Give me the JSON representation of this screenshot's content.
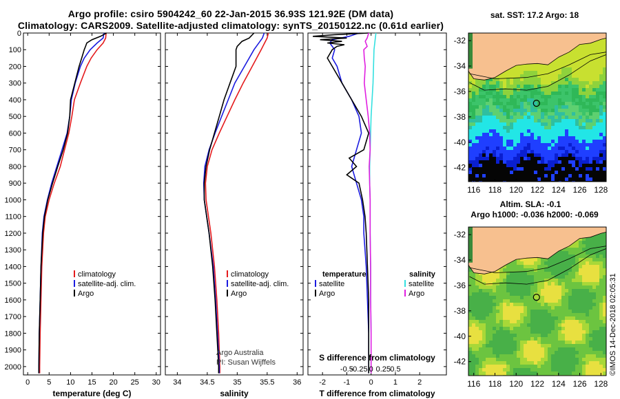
{
  "header": {
    "title_line1": "Argo profile: csiro 5904242_60 22-Jan-2015 36.93S 121.92E (DM data)",
    "title_line2": "Climatology: CARS2009. Satellite-adjusted climatology: synTS_20150122.nc (0.61d earlier)"
  },
  "colors": {
    "climatology": "#e41a1c",
    "satellite": "#1a1adf",
    "argo": "#000000",
    "s_satellite": "#33e0e0",
    "s_argo": "#e01ee0",
    "land": "#f7c08f"
  },
  "chart_data": [
    {
      "id": "temperature",
      "type": "line",
      "xlabel": "temperature (deg C)",
      "xlim": [
        -1,
        31
      ],
      "xticks": [
        0,
        5,
        10,
        15,
        20,
        25,
        30
      ],
      "ylim": [
        2050,
        0
      ],
      "yticks": [
        0,
        100,
        200,
        300,
        400,
        500,
        600,
        700,
        800,
        900,
        1000,
        1100,
        1200,
        1300,
        1400,
        1500,
        1600,
        1700,
        1800,
        1900,
        2000
      ],
      "legend": [
        "climatology",
        "satellite-adj. clim.",
        "Argo"
      ],
      "series": [
        {
          "name": "climatology",
          "color": "#e41a1c",
          "depth": [
            0,
            30,
            60,
            100,
            150,
            200,
            300,
            400,
            500,
            600,
            700,
            800,
            900,
            1000,
            1100,
            1200,
            1400,
            1600,
            1800,
            2000,
            2040
          ],
          "values": [
            18.3,
            18.2,
            17.6,
            16.2,
            14.8,
            13.8,
            12.3,
            10.9,
            10.3,
            9.6,
            8.6,
            7.6,
            6.2,
            5.0,
            4.1,
            3.7,
            3.3,
            3.1,
            2.9,
            2.8,
            2.8
          ]
        },
        {
          "name": "satellite-adj. clim.",
          "color": "#1a1adf",
          "depth": [
            0,
            30,
            60,
            100,
            150,
            200,
            300,
            400,
            500,
            600,
            700,
            800,
            900,
            1000,
            1100,
            1200,
            1400,
            1600,
            1800,
            2000,
            2040
          ],
          "values": [
            17.8,
            17.6,
            16.2,
            14.6,
            13.2,
            12.3,
            11.1,
            10.2,
            9.8,
            9.2,
            8.0,
            6.8,
            5.6,
            4.6,
            3.8,
            3.4,
            3.1,
            2.9,
            2.7,
            2.6,
            2.6
          ]
        },
        {
          "name": "Argo",
          "color": "#000000",
          "depth": [
            0,
            20,
            40,
            60,
            80,
            100,
            150,
            200,
            300,
            400,
            500,
            600,
            700,
            800,
            900,
            1000,
            1100,
            1200,
            1400,
            1600,
            1800,
            2000,
            2040
          ],
          "values": [
            18.4,
            17.0,
            15.0,
            13.8,
            13.5,
            13.2,
            12.6,
            12.0,
            11.0,
            10.0,
            9.8,
            9.3,
            8.3,
            7.0,
            5.8,
            4.7,
            3.9,
            3.5,
            3.1,
            2.9,
            2.7,
            2.6,
            2.6
          ]
        }
      ]
    },
    {
      "id": "salinity",
      "type": "line",
      "xlabel": "salinity",
      "xlim": [
        33.8,
        36.1
      ],
      "xticks": [
        34,
        34.5,
        35,
        35.5,
        36
      ],
      "xticklabels": [
        "34",
        "34.5",
        "35",
        "35.5",
        "36"
      ],
      "ylim": [
        2050,
        0
      ],
      "legend": [
        "climatology",
        "satellite-adj. clim.",
        "Argo"
      ],
      "annotations": [
        "Argo Australia",
        "PI: Susan Wijffels"
      ],
      "series": [
        {
          "name": "climatology",
          "color": "#e41a1c",
          "depth": [
            0,
            30,
            100,
            200,
            300,
            400,
            500,
            600,
            700,
            800,
            900,
            1000,
            1100,
            1200,
            1400,
            1600,
            1800,
            2000,
            2040
          ],
          "values": [
            35.52,
            35.5,
            35.4,
            35.25,
            35.1,
            34.96,
            34.83,
            34.7,
            34.58,
            34.5,
            34.47,
            34.48,
            34.52,
            34.56,
            34.62,
            34.66,
            34.69,
            34.71,
            34.71
          ]
        },
        {
          "name": "satellite-adj. clim.",
          "color": "#1a1adf",
          "depth": [
            0,
            30,
            100,
            200,
            300,
            400,
            500,
            600,
            700,
            800,
            900,
            1000,
            1100,
            1200,
            1400,
            1600,
            1800,
            2000,
            2040
          ],
          "values": [
            35.45,
            35.42,
            35.28,
            35.12,
            34.96,
            34.85,
            34.74,
            34.63,
            34.53,
            34.46,
            34.44,
            34.45,
            34.49,
            34.53,
            34.6,
            34.64,
            34.67,
            34.7,
            34.7
          ]
        },
        {
          "name": "Argo",
          "color": "#000000",
          "depth": [
            0,
            30,
            50,
            80,
            100,
            200,
            300,
            400,
            500,
            600,
            700,
            800,
            900,
            1000,
            1100,
            1200,
            1400,
            1600,
            1800,
            2000,
            2040
          ],
          "values": [
            35.28,
            35.2,
            35.08,
            35.0,
            34.98,
            34.98,
            34.88,
            34.78,
            34.7,
            34.62,
            34.54,
            34.48,
            34.45,
            34.45,
            34.49,
            34.53,
            34.59,
            34.63,
            34.66,
            34.69,
            34.69
          ]
        }
      ]
    },
    {
      "id": "differences",
      "type": "line",
      "xlabel": "T difference from climatology",
      "xlabel_top": "S difference from climatology",
      "xlim": [
        -2.6,
        3.1
      ],
      "xticks": [
        -2,
        -1,
        0,
        1,
        2
      ],
      "xticks_top": [
        -0.5,
        -0.25,
        0,
        0.25,
        0.5
      ],
      "xticks_top_labels": [
        "-0.5",
        "-0.25",
        "0",
        "0.25",
        "0.5"
      ],
      "ylim": [
        2050,
        0
      ],
      "legend_left_title": "temperature",
      "legend_left": [
        "satellite",
        "Argo"
      ],
      "legend_right_title": "salinity",
      "legend_right": [
        "satellite",
        "Argo"
      ],
      "series": [
        {
          "name": "T satellite",
          "color": "#1a1adf",
          "depth": [
            0,
            20,
            40,
            60,
            80,
            100,
            150,
            200,
            300,
            400,
            500,
            600,
            700,
            800,
            900,
            1000,
            1100,
            1200,
            1400,
            1600,
            1800,
            2000,
            2040
          ],
          "values": [
            -0.5,
            -0.9,
            -1.6,
            -1.7,
            -1.6,
            -1.5,
            -1.6,
            -1.4,
            -1.2,
            -0.8,
            -0.5,
            -0.4,
            -0.6,
            -0.8,
            -0.6,
            -0.4,
            -0.3,
            -0.3,
            -0.2,
            -0.15,
            -0.1,
            -0.1,
            -0.1
          ]
        },
        {
          "name": "T Argo",
          "color": "#000000",
          "depth": [
            0,
            10,
            20,
            30,
            40,
            50,
            60,
            70,
            80,
            100,
            150,
            200,
            300,
            400,
            500,
            600,
            700,
            750,
            800,
            850,
            900,
            1000,
            1100,
            1200,
            1400,
            1600,
            1800,
            2000,
            2040
          ],
          "values": [
            -0.1,
            -1.5,
            -2.4,
            -1.0,
            -2.1,
            -1.2,
            -1.8,
            -1.1,
            -1.4,
            -1.6,
            -1.8,
            -1.6,
            -1.2,
            -0.8,
            -0.4,
            -0.1,
            -0.3,
            -0.9,
            -0.6,
            -1.0,
            -0.5,
            -0.35,
            -0.25,
            -0.2,
            -0.15,
            -0.1,
            -0.1,
            -0.1,
            -0.1
          ]
        },
        {
          "name": "S satellite",
          "color": "#33e0e0",
          "depth": [
            0,
            50,
            100,
            200,
            300,
            400,
            500,
            600,
            700,
            800,
            900,
            1000,
            1100,
            1200,
            1400,
            1600,
            1800,
            2000,
            2040
          ],
          "values": [
            0.1,
            0.08,
            0.06,
            0.05,
            0.04,
            0.02,
            0.0,
            -0.01,
            -0.02,
            -0.03,
            -0.03,
            -0.02,
            -0.02,
            -0.02,
            -0.01,
            -0.01,
            0.0,
            0.0,
            0.0
          ]
        },
        {
          "name": "S Argo",
          "color": "#e01ee0",
          "depth": [
            0,
            30,
            50,
            80,
            100,
            150,
            200,
            300,
            400,
            500,
            600,
            700,
            800,
            900,
            1000,
            1100,
            1200,
            1400,
            1600,
            1800,
            2000,
            2040
          ],
          "values": [
            -0.05,
            -0.08,
            -0.12,
            -0.08,
            -0.15,
            -0.14,
            -0.12,
            -0.14,
            -0.1,
            -0.06,
            -0.03,
            -0.02,
            -0.04,
            -0.03,
            -0.02,
            -0.02,
            -0.02,
            -0.01,
            -0.01,
            0.0,
            0.0,
            0.0
          ]
        }
      ]
    },
    {
      "id": "sst_map",
      "type": "heatmap",
      "title": "sat. SST: 17.2 Argo: 18",
      "xticks": [
        116,
        118,
        120,
        122,
        124,
        126,
        128
      ],
      "yticks": [
        -32,
        -34,
        -36,
        -38,
        -40,
        -42
      ],
      "xlim": [
        115.5,
        128.5
      ],
      "ylim": [
        -43.1,
        -31.4
      ],
      "profile_location": {
        "lon": 121.92,
        "lat": -36.93
      }
    },
    {
      "id": "sla_map",
      "type": "heatmap",
      "title": "Altim. SLA: -0.1",
      "subtitle": "Argo h1000: -0.036 h2000: -0.069",
      "xticks": [
        116,
        118,
        120,
        122,
        124,
        126,
        128
      ],
      "yticks": [
        -32,
        -34,
        -36,
        -38,
        -40,
        -42
      ],
      "xlim": [
        115.5,
        128.5
      ],
      "ylim": [
        -43.1,
        -31.4
      ],
      "profile_location": {
        "lon": 121.92,
        "lat": -36.93
      }
    }
  ],
  "footer": {
    "credit": "©IMOS 14-Dec-2018 02:05:31"
  }
}
